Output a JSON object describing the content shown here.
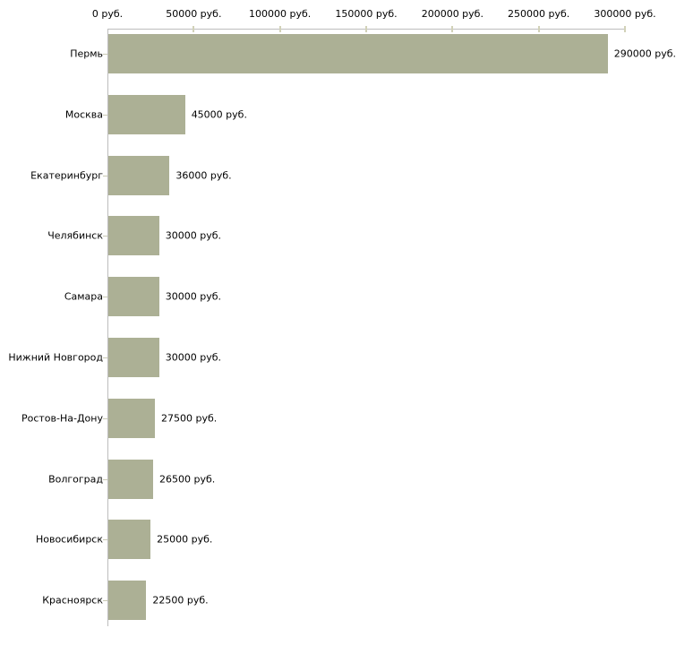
{
  "chart_data": {
    "type": "bar",
    "orientation": "horizontal",
    "title": "",
    "xlabel": "",
    "ylabel": "",
    "categories": [
      "Пермь",
      "Москва",
      "Екатеринбург",
      "Челябинск",
      "Самара",
      "Нижний Новгород",
      "Ростов-На-Дону",
      "Волгоград",
      "Новосибирск",
      "Красноярск"
    ],
    "values": [
      290000,
      45000,
      36000,
      30000,
      30000,
      30000,
      27500,
      26500,
      25000,
      22500
    ],
    "value_labels": [
      "290000 руб.",
      "45000 руб.",
      "36000 руб.",
      "30000 руб.",
      "30000 руб.",
      "30000 руб.",
      "27500 руб.",
      "26500 руб.",
      "25000 руб.",
      "22500 руб."
    ],
    "xlim": [
      0,
      300000
    ],
    "x_ticks": [
      0,
      50000,
      100000,
      150000,
      200000,
      250000,
      300000
    ],
    "x_tick_labels": [
      "0 руб.",
      "50000 руб.",
      "100000 руб.",
      "150000 руб.",
      "200000 руб.",
      "250000 руб.",
      "300000 руб."
    ],
    "axis_position": "top",
    "grid": false,
    "legend": false,
    "colors": {
      "bar": "#acb095",
      "axis_line": "#bdbdbd",
      "axis_tick": "#d2d2b8",
      "category_tick": "#c9c9b4",
      "text": "#000000",
      "background": "#ffffff"
    }
  }
}
